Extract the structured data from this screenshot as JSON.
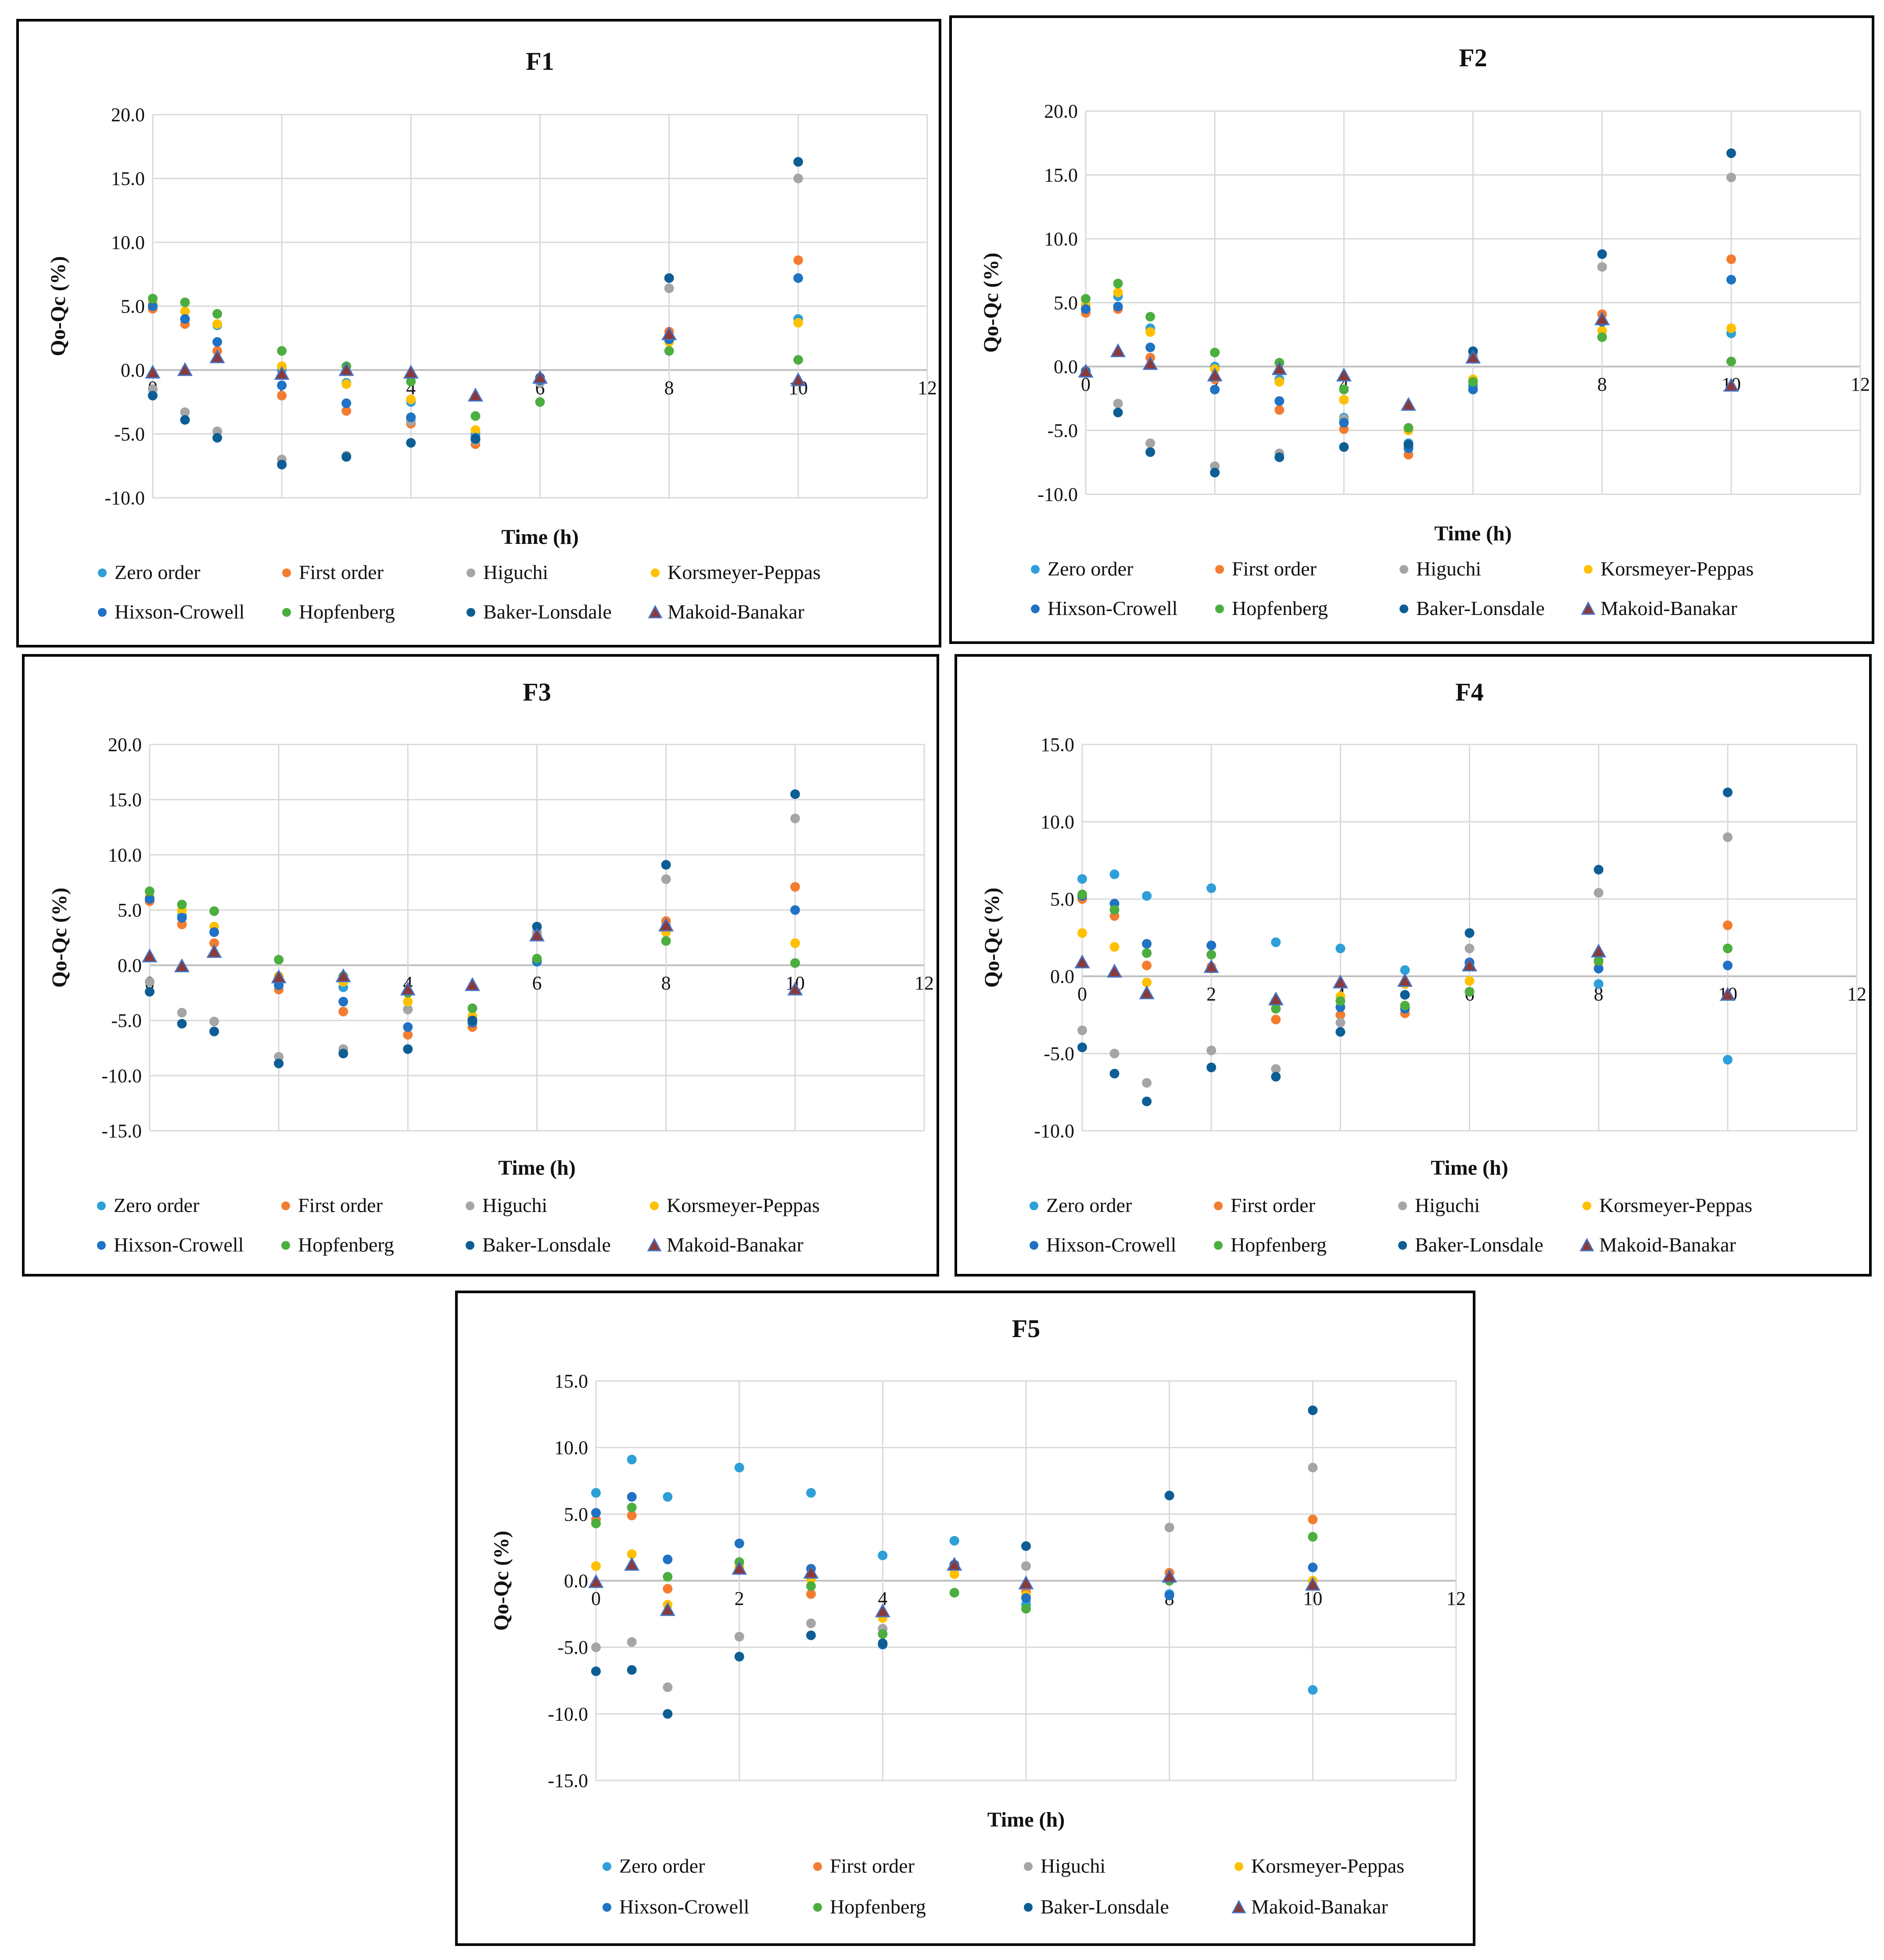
{
  "figure": {
    "series_names": [
      "Zero order",
      "First order",
      "Higuchi",
      "Korsmeyer-Peppas",
      "Hixson-Crowell",
      "Hopfenberg",
      "Baker-Lonsdale",
      "Makoid-Banakar"
    ],
    "series_colors": [
      "#2e9fd8",
      "#f47c30",
      "#a5a5a5",
      "#ffc000",
      "#1f72c4",
      "#4cae3f",
      "#0d5e94",
      "#8b3a3a"
    ],
    "series_markers": [
      "circle",
      "circle",
      "circle",
      "circle",
      "circle",
      "circle",
      "circle",
      "triangle"
    ]
  },
  "chart_data": [
    {
      "type": "scatter",
      "title": "F1",
      "xlabel": "Time (h)",
      "ylabel": "Qo-Qc (%)",
      "xlim": [
        0,
        12
      ],
      "ylim": [
        -10,
        20
      ],
      "xticks": [
        "0",
        "2",
        "4",
        "6",
        "8",
        "10",
        "12"
      ],
      "yticks": [
        "-10.0",
        "-5.0",
        "0.0",
        "5.0",
        "10.0",
        "15.0",
        "20.0"
      ],
      "x": [
        0,
        0.5,
        1,
        2,
        3,
        4,
        5,
        6,
        8,
        10
      ],
      "series": [
        {
          "name": "Zero order",
          "values": [
            5.0,
            4.0,
            3.5,
            0.0,
            -1.0,
            -2.5,
            -5.0,
            -1.0,
            2.5,
            4.0
          ]
        },
        {
          "name": "First order",
          "values": [
            4.8,
            3.6,
            1.5,
            -2.0,
            -3.2,
            -4.2,
            -5.8,
            -0.8,
            3.0,
            8.6
          ]
        },
        {
          "name": "Higuchi",
          "values": [
            -1.5,
            -3.3,
            -4.8,
            -7.0,
            -6.7,
            -4.0,
            -5.5,
            -1.0,
            6.4,
            15.0
          ]
        },
        {
          "name": "Korsmeyer-Peppas",
          "values": [
            5.2,
            4.6,
            3.6,
            0.3,
            -1.1,
            -2.3,
            -4.7,
            -0.8,
            2.2,
            3.7
          ]
        },
        {
          "name": "Hixson-Crowell",
          "values": [
            5.0,
            4.0,
            2.2,
            -1.2,
            -2.6,
            -3.7,
            -5.3,
            -0.8,
            2.4,
            7.2
          ]
        },
        {
          "name": "Hopfenberg",
          "values": [
            5.6,
            5.3,
            4.4,
            1.5,
            0.3,
            -0.9,
            -3.6,
            -2.5,
            1.5,
            0.8
          ]
        },
        {
          "name": "Baker-Lonsdale",
          "values": [
            -2.0,
            -3.9,
            -5.3,
            -7.4,
            -6.8,
            -5.7,
            -5.4,
            -0.6,
            7.2,
            16.3
          ]
        },
        {
          "name": "Makoid-Banakar",
          "values": [
            -0.2,
            0.0,
            1.0,
            -0.3,
            0.0,
            -0.2,
            -2.0,
            -0.6,
            2.8,
            -0.8
          ]
        }
      ]
    },
    {
      "type": "scatter",
      "title": "F2",
      "xlabel": "Time (h)",
      "ylabel": "Qo-Qc (%)",
      "xlim": [
        0,
        12
      ],
      "ylim": [
        -10,
        20
      ],
      "xticks": [
        "0",
        "2",
        "4",
        "6",
        "8",
        "10",
        "12"
      ],
      "yticks": [
        "-10.0",
        "-5.0",
        "0.0",
        "5.0",
        "10.0",
        "15.0",
        "20.0"
      ],
      "x": [
        0,
        0.5,
        1,
        2,
        3,
        4,
        5,
        6,
        8,
        10
      ],
      "series": [
        {
          "name": "Zero order",
          "values": [
            4.5,
            5.5,
            3.0,
            0.0,
            -1.0,
            -4.0,
            -6.0,
            -1.5,
            3.5,
            2.6
          ]
        },
        {
          "name": "First order",
          "values": [
            4.2,
            4.5,
            0.7,
            -1.0,
            -3.4,
            -4.9,
            -6.9,
            0.8,
            4.1,
            8.4
          ]
        },
        {
          "name": "Higuchi",
          "values": [
            -0.3,
            -2.9,
            -6.0,
            -7.8,
            -6.8,
            -4.1,
            -6.3,
            0.8,
            7.8,
            14.8
          ]
        },
        {
          "name": "Korsmeyer-Peppas",
          "values": [
            4.8,
            5.8,
            2.7,
            -0.2,
            -1.2,
            -2.6,
            -5.0,
            -1.0,
            2.8,
            3.0
          ]
        },
        {
          "name": "Hixson-Crowell",
          "values": [
            4.5,
            4.7,
            1.5,
            -1.8,
            -2.7,
            -4.4,
            -6.4,
            -1.8,
            3.5,
            6.8
          ]
        },
        {
          "name": "Hopfenberg",
          "values": [
            5.3,
            6.5,
            3.9,
            1.1,
            0.3,
            -1.8,
            -4.8,
            -1.2,
            2.3,
            0.4
          ]
        },
        {
          "name": "Baker-Lonsdale",
          "values": [
            -0.4,
            -3.6,
            -6.7,
            -8.3,
            -7.1,
            -6.3,
            -6.1,
            1.2,
            8.8,
            16.7
          ]
        },
        {
          "name": "Makoid-Banakar",
          "values": [
            -0.4,
            1.2,
            0.2,
            -0.7,
            -0.2,
            -0.7,
            -3.0,
            0.7,
            3.7,
            -1.5
          ]
        }
      ]
    },
    {
      "type": "scatter",
      "title": "F3",
      "xlabel": "Time (h)",
      "ylabel": "Qo-Qc (%)",
      "xlim": [
        0,
        12
      ],
      "ylim": [
        -15,
        20
      ],
      "xticks": [
        "0",
        "2",
        "4",
        "6",
        "8",
        "10",
        "12"
      ],
      "yticks": [
        "-15.0",
        "-10.0",
        "-5.0",
        "0.0",
        "5.0",
        "10.0",
        "15.0",
        "20.0"
      ],
      "x": [
        0,
        0.5,
        1,
        2,
        3,
        4,
        5,
        6,
        8,
        10
      ],
      "series": [
        {
          "name": "Zero order",
          "values": [
            6.0,
            4.5,
            3.0,
            -1.0,
            -2.0,
            -4.0,
            -5.0,
            0.3,
            3.2,
            0.2
          ]
        },
        {
          "name": "First order",
          "values": [
            5.8,
            3.7,
            2.0,
            -2.2,
            -4.2,
            -6.3,
            -5.6,
            2.8,
            4.0,
            7.1
          ]
        },
        {
          "name": "Higuchi",
          "values": [
            -1.5,
            -4.3,
            -5.1,
            -8.3,
            -7.6,
            -4.0,
            -4.8,
            3.0,
            7.8,
            13.3
          ]
        },
        {
          "name": "Korsmeyer-Peppas",
          "values": [
            6.2,
            5.0,
            3.5,
            -1.0,
            -1.5,
            -3.3,
            -4.6,
            0.5,
            3.0,
            2.0
          ]
        },
        {
          "name": "Hixson-Crowell",
          "values": [
            6.0,
            4.3,
            3.0,
            -1.8,
            -3.3,
            -5.6,
            -5.2,
            0.4,
            3.5,
            5.0
          ]
        },
        {
          "name": "Hopfenberg",
          "values": [
            6.7,
            5.5,
            4.9,
            0.5,
            -1.0,
            -2.5,
            -3.9,
            0.6,
            2.2,
            0.2
          ]
        },
        {
          "name": "Baker-Lonsdale",
          "values": [
            -2.4,
            -5.3,
            -6.0,
            -8.9,
            -8.0,
            -7.6,
            -5.0,
            3.5,
            9.1,
            15.5
          ]
        },
        {
          "name": "Makoid-Banakar",
          "values": [
            0.8,
            -0.1,
            1.2,
            -1.1,
            -1.0,
            -2.2,
            -1.8,
            2.7,
            3.6,
            -2.2
          ]
        }
      ]
    },
    {
      "type": "scatter",
      "title": "F4",
      "xlabel": "Time (h)",
      "ylabel": "Qo-Qc (%)",
      "xlim": [
        0,
        12
      ],
      "ylim": [
        -10,
        15
      ],
      "xticks": [
        "0",
        "2",
        "4",
        "6",
        "8",
        "10",
        "12"
      ],
      "yticks": [
        "-10.0",
        "-5.0",
        "0.0",
        "5.0",
        "10.0",
        "15.0"
      ],
      "x": [
        0,
        0.5,
        1,
        2,
        3,
        4,
        5,
        6,
        8,
        10
      ],
      "series": [
        {
          "name": "Zero order",
          "values": [
            6.3,
            6.6,
            5.2,
            5.7,
            2.2,
            1.8,
            0.4,
            0.8,
            -0.5,
            -5.4
          ]
        },
        {
          "name": "First order",
          "values": [
            5.0,
            3.9,
            0.7,
            0.6,
            -2.8,
            -2.5,
            -2.4,
            0.9,
            1.0,
            3.3
          ]
        },
        {
          "name": "Higuchi",
          "values": [
            -3.5,
            -5.0,
            -6.9,
            -4.8,
            -6.0,
            -3.0,
            -1.2,
            1.8,
            5.4,
            9.0
          ]
        },
        {
          "name": "Korsmeyer-Peppas",
          "values": [
            2.8,
            1.9,
            -0.4,
            0.5,
            -1.8,
            -1.3,
            -0.5,
            -0.3,
            0.9,
            1.8
          ]
        },
        {
          "name": "Hixson-Crowell",
          "values": [
            5.2,
            4.7,
            2.1,
            2.0,
            -1.6,
            -2.0,
            -2.1,
            0.9,
            0.5,
            0.7
          ]
        },
        {
          "name": "Hopfenberg",
          "values": [
            5.3,
            4.3,
            1.5,
            1.4,
            -2.1,
            -1.6,
            -1.9,
            -1.0,
            1.0,
            1.8
          ]
        },
        {
          "name": "Baker-Lonsdale",
          "values": [
            -4.6,
            -6.3,
            -8.1,
            -5.9,
            -6.5,
            -3.6,
            -1.2,
            2.8,
            6.9,
            11.9
          ]
        },
        {
          "name": "Makoid-Banakar",
          "values": [
            0.9,
            0.3,
            -1.1,
            0.6,
            -1.5,
            -0.4,
            -0.3,
            0.7,
            1.6,
            -1.2
          ]
        }
      ]
    },
    {
      "type": "scatter",
      "title": "F5",
      "xlabel": "Time (h)",
      "ylabel": "Qo-Qc (%)",
      "xlim": [
        0,
        12
      ],
      "ylim": [
        -15,
        15
      ],
      "xticks": [
        "0",
        "2",
        "4",
        "6",
        "8",
        "10",
        "12"
      ],
      "yticks": [
        "-15.0",
        "-10.0",
        "-5.0",
        "0.0",
        "5.0",
        "10.0",
        "15.0"
      ],
      "x": [
        0,
        0.5,
        1,
        2,
        3,
        4,
        5,
        6,
        8,
        10
      ],
      "series": [
        {
          "name": "Zero order",
          "values": [
            6.6,
            9.1,
            6.3,
            8.5,
            6.6,
            1.9,
            3.0,
            -1.8,
            -1.0,
            -8.2
          ]
        },
        {
          "name": "First order",
          "values": [
            4.6,
            4.9,
            -0.6,
            0.8,
            -1.0,
            -2.6,
            0.9,
            -0.8,
            0.6,
            4.6
          ]
        },
        {
          "name": "Higuchi",
          "values": [
            -5.0,
            -4.6,
            -8.0,
            -4.2,
            -3.2,
            -3.6,
            1.0,
            1.1,
            4.0,
            8.5
          ]
        },
        {
          "name": "Korsmeyer-Peppas",
          "values": [
            1.1,
            2.0,
            -1.8,
            1.0,
            0.1,
            -2.8,
            0.5,
            -1.1,
            0.0,
            0.0
          ]
        },
        {
          "name": "Hixson-Crowell",
          "values": [
            5.1,
            6.3,
            1.6,
            2.8,
            0.9,
            -4.8,
            1.2,
            -1.3,
            -1.1,
            1.0
          ]
        },
        {
          "name": "Hopfenberg",
          "values": [
            4.3,
            5.5,
            0.3,
            1.4,
            -0.4,
            -4.0,
            -0.9,
            -2.1,
            0.0,
            3.3
          ]
        },
        {
          "name": "Baker-Lonsdale",
          "values": [
            -6.8,
            -6.7,
            -10.0,
            -5.7,
            -4.1,
            -4.7,
            1.2,
            2.6,
            6.4,
            12.8
          ]
        },
        {
          "name": "Makoid-Banakar",
          "values": [
            -0.1,
            1.2,
            -2.2,
            0.9,
            0.6,
            -2.3,
            1.2,
            -0.2,
            0.3,
            -0.3
          ]
        }
      ]
    }
  ]
}
